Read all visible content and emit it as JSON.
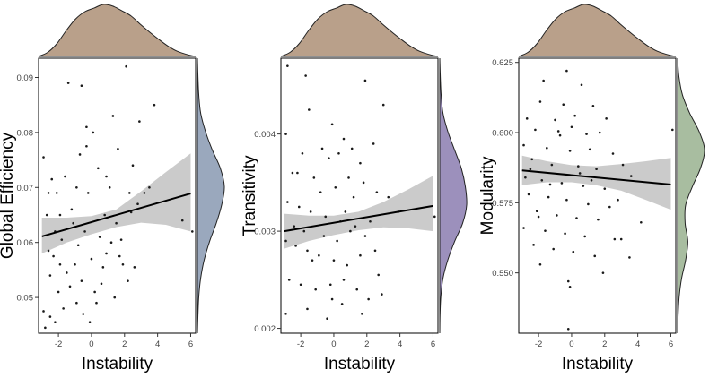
{
  "colors": {
    "top_density_fill": "#b9a08a",
    "ci_band": "#c2c2c2",
    "points": "#1a1a1a",
    "regression_line": "#000000"
  },
  "chart_data": [
    {
      "type": "scatter",
      "title": "",
      "xlabel": "Instability",
      "ylabel": "Global Efficiency",
      "xlim": [
        -3.2,
        6.3
      ],
      "ylim": [
        0.0435,
        0.0935
      ],
      "x_ticks": [
        -2,
        0,
        2,
        4,
        6
      ],
      "x_tick_labels": [
        "-2",
        "0",
        "2",
        "4",
        "6"
      ],
      "y_ticks": [
        0.05,
        0.06,
        0.07,
        0.08,
        0.09
      ],
      "y_tick_labels": [
        "0.05",
        "0.06",
        "0.07",
        "0.08",
        "0.09"
      ],
      "regression": {
        "x": [
          -3,
          6
        ],
        "y": [
          0.0611,
          0.0689
        ]
      },
      "ci_band": {
        "x": [
          -3,
          -1.5,
          0,
          1.5,
          3,
          4.5,
          6
        ],
        "upper": [
          0.0645,
          0.0645,
          0.0648,
          0.066,
          0.0693,
          0.0728,
          0.0762
        ],
        "lower": [
          0.058,
          0.06,
          0.0615,
          0.0628,
          0.0636,
          0.0632,
          0.062
        ]
      },
      "right_density_color": "#9aa8bd",
      "points": [
        [
          -2.8,
          0.0445
        ],
        [
          -2.9,
          0.0475
        ],
        [
          -2.5,
          0.0465
        ],
        [
          -2.2,
          0.0455
        ],
        [
          -2.6,
          0.0585
        ],
        [
          -2.9,
          0.0755
        ],
        [
          -2.4,
          0.0715
        ],
        [
          -2.1,
          0.069
        ],
        [
          -1.6,
          0.072
        ],
        [
          -1.4,
          0.089
        ],
        [
          -0.6,
          0.0885
        ],
        [
          -0.3,
          0.081
        ],
        [
          0.1,
          0.08
        ],
        [
          -0.7,
          0.076
        ],
        [
          -0.9,
          0.07
        ],
        [
          -1.9,
          0.065
        ],
        [
          -2.2,
          0.062
        ],
        [
          -2.5,
          0.054
        ],
        [
          -2.0,
          0.051
        ],
        [
          -1.7,
          0.048
        ],
        [
          -1.3,
          0.052
        ],
        [
          -1.0,
          0.056
        ],
        [
          -0.5,
          0.047
        ],
        [
          -0.1,
          0.0455
        ],
        [
          0.3,
          0.049
        ],
        [
          0.6,
          0.0525
        ],
        [
          0.9,
          0.058
        ],
        [
          1.2,
          0.06
        ],
        [
          1.5,
          0.0635
        ],
        [
          1.9,
          0.056
        ],
        [
          2.2,
          0.053
        ],
        [
          2.6,
          0.0555
        ],
        [
          1.6,
          0.077
        ],
        [
          2.1,
          0.092
        ],
        [
          2.9,
          0.082
        ],
        [
          3.5,
          0.07
        ],
        [
          3.8,
          0.085
        ],
        [
          6.1,
          0.062
        ],
        [
          5.5,
          0.064
        ],
        [
          1.3,
          0.083
        ],
        [
          0.4,
          0.0735
        ],
        [
          -0.2,
          0.069
        ],
        [
          -1.1,
          0.0635
        ],
        [
          -1.8,
          0.0605
        ],
        [
          -0.4,
          0.062
        ],
        [
          0.8,
          0.065
        ],
        [
          1.1,
          0.07
        ],
        [
          2.4,
          0.0655
        ],
        [
          2.8,
          0.067
        ],
        [
          3.2,
          0.069
        ],
        [
          -2.7,
          0.065
        ],
        [
          -2.3,
          0.0575
        ],
        [
          -1.5,
          0.0545
        ],
        [
          -0.8,
          0.0595
        ],
        [
          0.0,
          0.057
        ],
        [
          0.5,
          0.061
        ],
        [
          1.8,
          0.0605
        ],
        [
          2.5,
          0.074
        ],
        [
          -1.2,
          0.066
        ],
        [
          -0.6,
          0.053
        ],
        [
          0.2,
          0.051
        ],
        [
          1.4,
          0.05
        ],
        [
          -2.6,
          0.069
        ],
        [
          -1.9,
          0.056
        ],
        [
          -0.9,
          0.049
        ],
        [
          0.7,
          0.0555
        ],
        [
          1.7,
          0.0575
        ],
        [
          2.3,
          0.069
        ],
        [
          -0.3,
          0.0775
        ],
        [
          0.9,
          0.072
        ]
      ]
    },
    {
      "type": "scatter",
      "title": "",
      "xlabel": "Instability",
      "ylabel": "Transitivity",
      "xlim": [
        -3.2,
        6.3
      ],
      "ylim": [
        0.00195,
        0.00478
      ],
      "x_ticks": [
        -2,
        0,
        2,
        4,
        6
      ],
      "x_tick_labels": [
        "-2",
        "0",
        "2",
        "4",
        "6"
      ],
      "y_ticks": [
        0.002,
        0.003,
        0.004
      ],
      "y_tick_labels": [
        "0.002",
        "0.003",
        "0.004"
      ],
      "regression": {
        "x": [
          -3,
          6
        ],
        "y": [
          0.003,
          0.00326
        ]
      },
      "ci_band": {
        "x": [
          -3,
          -1.5,
          0,
          1.5,
          3,
          4.5,
          6
        ],
        "upper": [
          0.00318,
          0.00316,
          0.00316,
          0.0032,
          0.0033,
          0.00343,
          0.00357
        ],
        "lower": [
          0.00282,
          0.0029,
          0.00296,
          0.00301,
          0.00304,
          0.00303,
          0.003
        ]
      },
      "right_density_color": "#9c90bc",
      "points": [
        [
          -2.8,
          0.0047
        ],
        [
          -1.7,
          0.0046
        ],
        [
          1.9,
          0.00455
        ],
        [
          -1.5,
          0.00425
        ],
        [
          3.0,
          0.0043
        ],
        [
          -0.1,
          0.0041
        ],
        [
          -2.9,
          0.004
        ],
        [
          0.6,
          0.00395
        ],
        [
          -1.9,
          0.0038
        ],
        [
          1.1,
          0.00385
        ],
        [
          2.4,
          0.0039
        ],
        [
          -0.3,
          0.00375
        ],
        [
          1.6,
          0.0037
        ],
        [
          0.3,
          0.0038
        ],
        [
          -2.5,
          0.0036
        ],
        [
          -1.2,
          0.00355
        ],
        [
          -0.8,
          0.0034
        ],
        [
          0.1,
          0.00345
        ],
        [
          0.9,
          0.00355
        ],
        [
          1.8,
          0.0035
        ],
        [
          2.6,
          0.0034
        ],
        [
          3.3,
          0.00335
        ],
        [
          -2.8,
          0.0033
        ],
        [
          -2.1,
          0.00325
        ],
        [
          -1.4,
          0.0032
        ],
        [
          -0.5,
          0.00315
        ],
        [
          0.4,
          0.0031
        ],
        [
          1.3,
          0.00305
        ],
        [
          2.2,
          0.0031
        ],
        [
          3.9,
          0.0032
        ],
        [
          6.1,
          0.00315
        ],
        [
          -2.9,
          0.0029
        ],
        [
          -2.3,
          0.00285
        ],
        [
          -1.6,
          0.0028
        ],
        [
          -0.9,
          0.00275
        ],
        [
          0.0,
          0.0027
        ],
        [
          0.8,
          0.00265
        ],
        [
          1.6,
          0.00275
        ],
        [
          2.5,
          0.0028
        ],
        [
          -2.7,
          0.0025
        ],
        [
          -2.0,
          0.00245
        ],
        [
          -1.1,
          0.0024
        ],
        [
          -0.2,
          0.00245
        ],
        [
          0.6,
          0.0025
        ],
        [
          1.4,
          0.0024
        ],
        [
          2.1,
          0.0023
        ],
        [
          2.9,
          0.00235
        ],
        [
          -2.9,
          0.00215
        ],
        [
          -1.6,
          0.0022
        ],
        [
          -0.4,
          0.0021
        ],
        [
          0.5,
          0.00225
        ],
        [
          1.7,
          0.00215
        ],
        [
          -1.8,
          0.003
        ],
        [
          -0.6,
          0.00295
        ],
        [
          0.2,
          0.0029
        ],
        [
          1.0,
          0.003
        ],
        [
          -2.4,
          0.00305
        ],
        [
          -1.3,
          0.0027
        ],
        [
          0.7,
          0.0032
        ],
        [
          1.9,
          0.00295
        ],
        [
          -0.1,
          0.0023
        ],
        [
          2.7,
          0.00255
        ],
        [
          -2.2,
          0.0036
        ],
        [
          -0.7,
          0.00385
        ],
        [
          1.2,
          0.00335
        ]
      ]
    },
    {
      "type": "scatter",
      "title": "",
      "xlabel": "Instability",
      "ylabel": "Modularity",
      "xlim": [
        -3.2,
        6.3
      ],
      "ylim": [
        0.5285,
        0.6265
      ],
      "x_ticks": [
        -2,
        0,
        2,
        4,
        6
      ],
      "x_tick_labels": [
        "-2",
        "0",
        "2",
        "4",
        "6"
      ],
      "y_ticks": [
        0.55,
        0.575,
        0.6,
        0.625
      ],
      "y_tick_labels": [
        "0.550",
        "0.575",
        "0.600",
        "0.625"
      ],
      "regression": {
        "x": [
          -3,
          6
        ],
        "y": [
          0.5865,
          0.5815
        ]
      },
      "ci_band": {
        "x": [
          -3,
          -1.5,
          0,
          1.5,
          3,
          4.5,
          6
        ],
        "upper": [
          0.5918,
          0.5898,
          0.5884,
          0.588,
          0.5888,
          0.5898,
          0.591
        ],
        "lower": [
          0.5813,
          0.5823,
          0.5823,
          0.5812,
          0.5793,
          0.576,
          0.5725
        ]
      },
      "right_density_color": "#a8bda0",
      "points": [
        [
          -0.3,
          0.622
        ],
        [
          -1.7,
          0.6185
        ],
        [
          0.6,
          0.617
        ],
        [
          -1.9,
          0.611
        ],
        [
          -0.5,
          0.61
        ],
        [
          1.3,
          0.6095
        ],
        [
          -2.7,
          0.605
        ],
        [
          -1.0,
          0.6045
        ],
        [
          0.2,
          0.606
        ],
        [
          2.1,
          0.605
        ],
        [
          -2.2,
          0.601
        ],
        [
          -0.8,
          0.6005
        ],
        [
          0.9,
          0.5995
        ],
        [
          1.7,
          0.6
        ],
        [
          6.1,
          0.601
        ],
        [
          -2.9,
          0.5955
        ],
        [
          -1.5,
          0.5945
        ],
        [
          -0.1,
          0.5935
        ],
        [
          1.1,
          0.594
        ],
        [
          2.5,
          0.5925
        ],
        [
          -2.4,
          0.5905
        ],
        [
          -1.2,
          0.5885
        ],
        [
          0.4,
          0.588
        ],
        [
          1.5,
          0.587
        ],
        [
          3.1,
          0.5885
        ],
        [
          -2.8,
          0.584
        ],
        [
          -1.8,
          0.583
        ],
        [
          -0.6,
          0.582
        ],
        [
          0.7,
          0.581
        ],
        [
          2.0,
          0.58
        ],
        [
          3.6,
          0.5845
        ],
        [
          -2.6,
          0.578
        ],
        [
          -1.4,
          0.577
        ],
        [
          -0.3,
          0.576
        ],
        [
          1.0,
          0.5745
        ],
        [
          2.3,
          0.5735
        ],
        [
          -2.1,
          0.572
        ],
        [
          -0.9,
          0.5705
        ],
        [
          0.3,
          0.5695
        ],
        [
          1.6,
          0.569
        ],
        [
          4.2,
          0.568
        ],
        [
          -2.9,
          0.566
        ],
        [
          -1.6,
          0.565
        ],
        [
          -0.4,
          0.564
        ],
        [
          0.8,
          0.563
        ],
        [
          2.6,
          0.562
        ],
        [
          -2.3,
          0.56
        ],
        [
          -1.1,
          0.5585
        ],
        [
          0.1,
          0.5575
        ],
        [
          1.4,
          0.556
        ],
        [
          3.5,
          0.5555
        ],
        [
          -1.9,
          0.553
        ],
        [
          -0.2,
          0.547
        ],
        [
          -0.1,
          0.545
        ],
        [
          1.9,
          0.55
        ],
        [
          -0.2,
          0.53
        ],
        [
          -2.5,
          0.587
        ],
        [
          -1.3,
          0.5815
        ],
        [
          0.5,
          0.5855
        ],
        [
          2.8,
          0.576
        ],
        [
          -0.7,
          0.599
        ],
        [
          1.2,
          0.583
        ],
        [
          -2.0,
          0.57
        ],
        [
          3.0,
          0.562
        ],
        [
          0.0,
          0.602
        ]
      ]
    }
  ]
}
